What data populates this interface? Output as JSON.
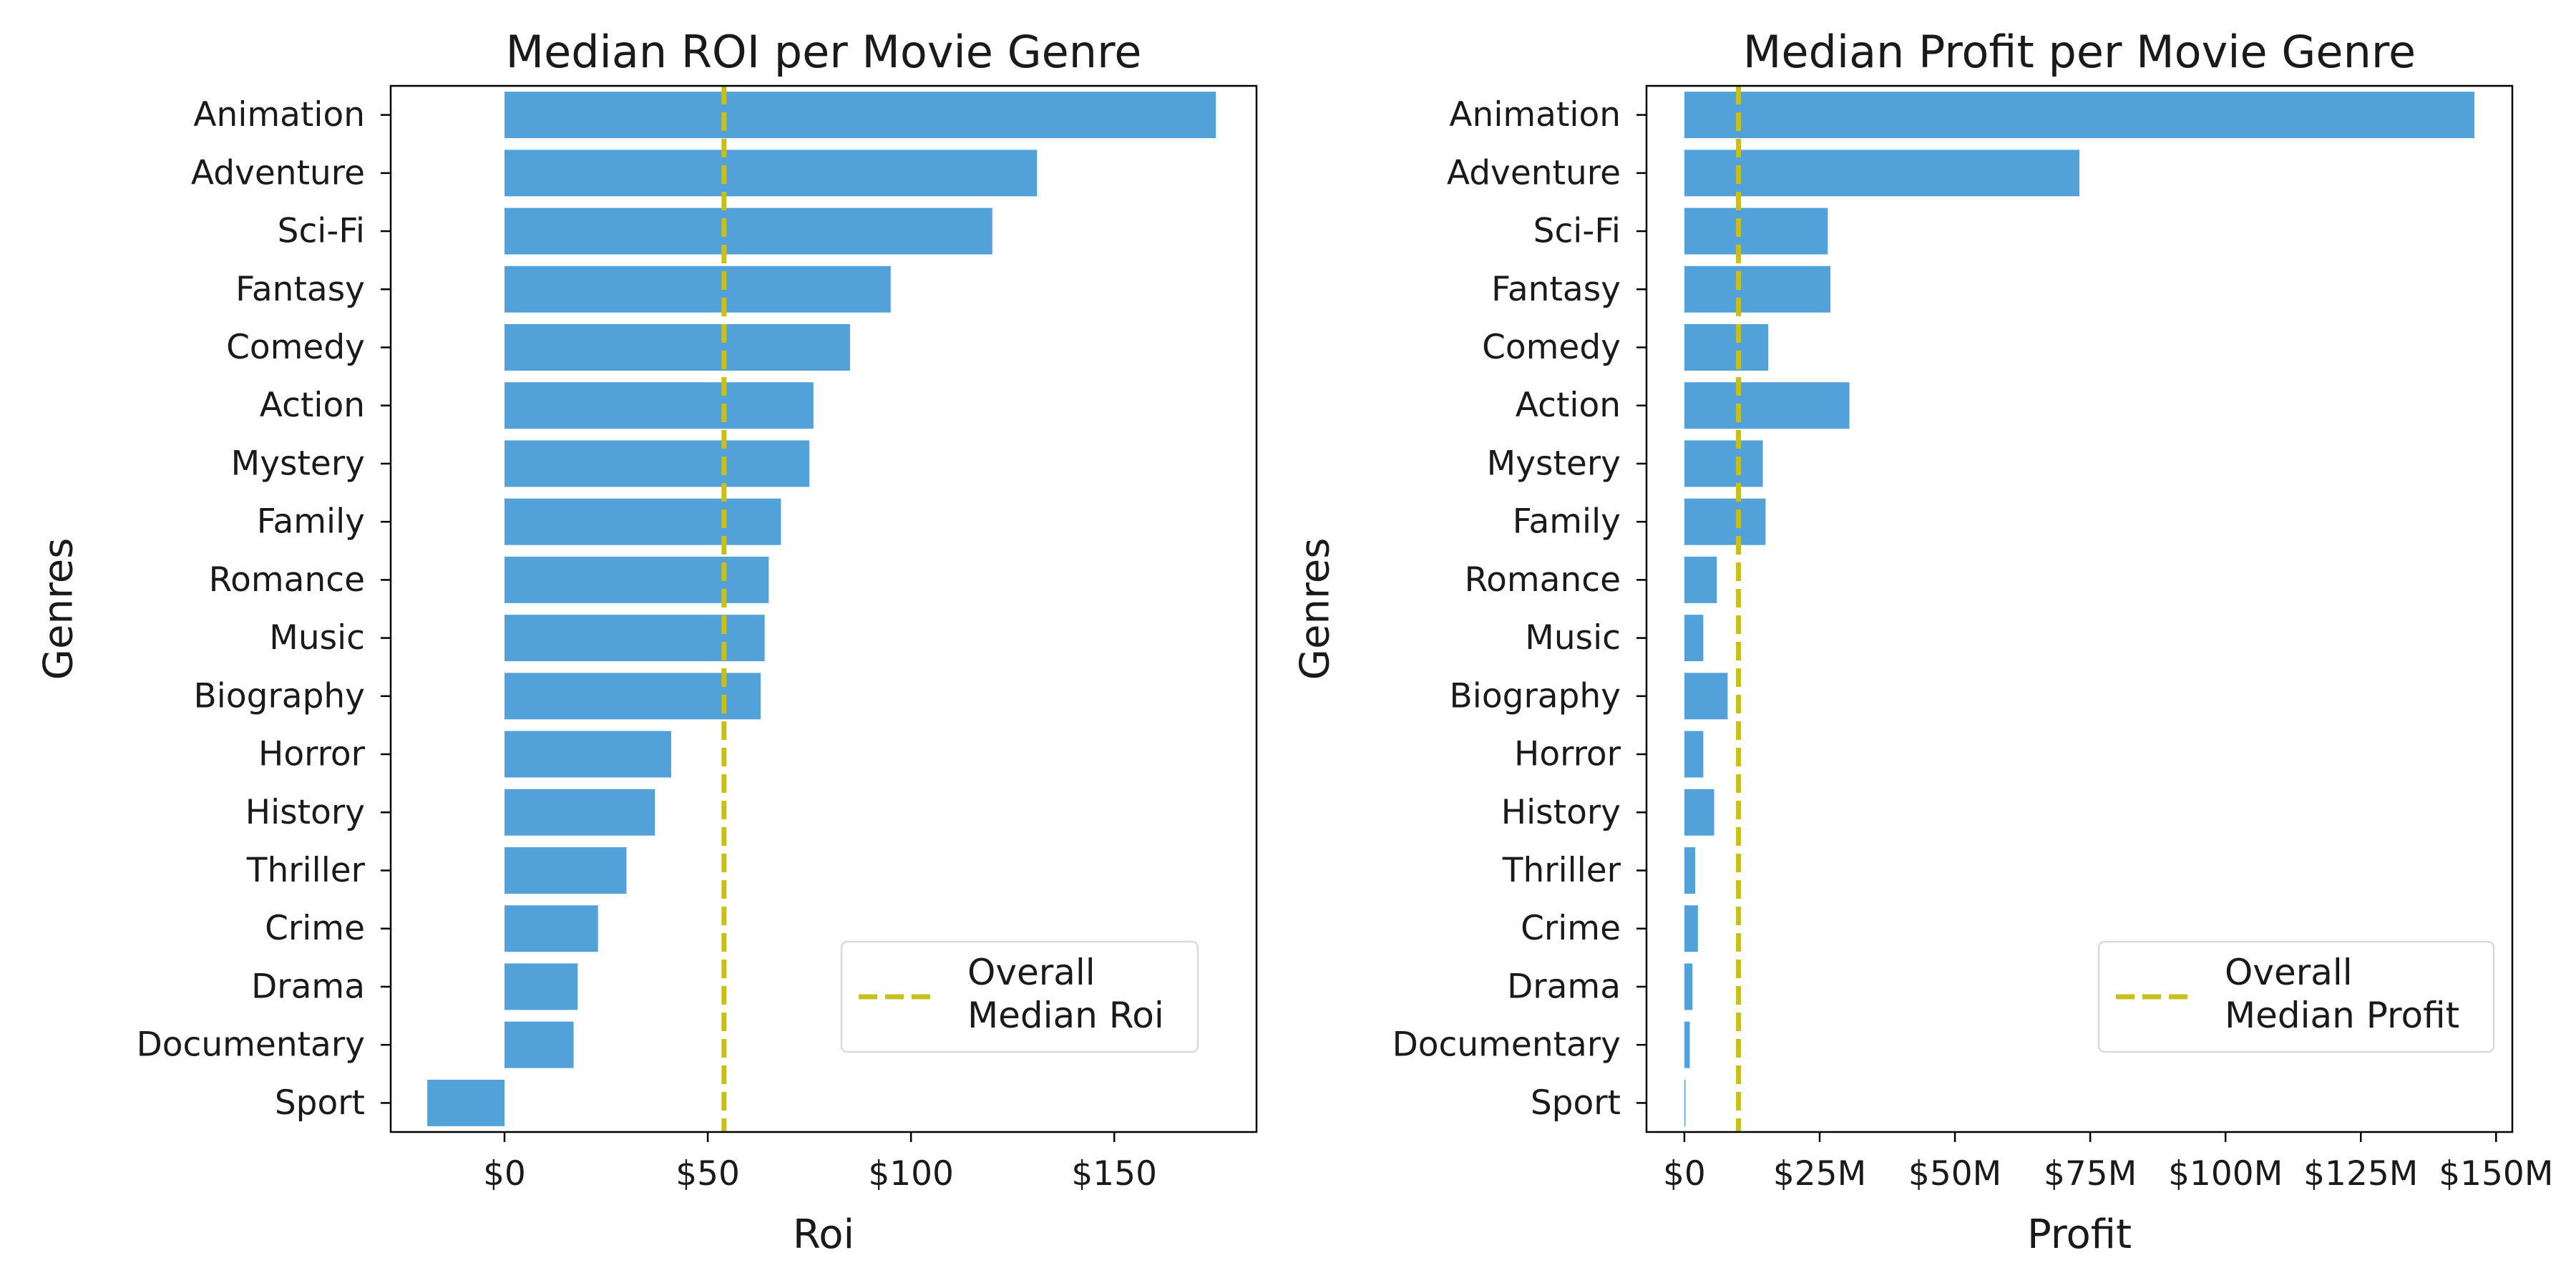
{
  "colors": {
    "bar": "#52a1d9",
    "median_line": "#c7c01c",
    "axis": "#000000",
    "legend_border": "#d9d9d9"
  },
  "chart_data": [
    {
      "type": "bar",
      "orientation": "horizontal",
      "title": "Median ROI per Movie Genre",
      "xlabel": "Roi",
      "ylabel": "Genres",
      "categories": [
        "Animation",
        "Adventure",
        "Sci-Fi",
        "Fantasy",
        "Comedy",
        "Action",
        "Mystery",
        "Family",
        "Romance",
        "Music",
        "Biography",
        "Horror",
        "History",
        "Thriller",
        "Crime",
        "Drama",
        "Documentary",
        "Sport"
      ],
      "values": [
        175,
        131,
        120,
        95,
        85,
        76,
        75,
        68,
        65,
        64,
        63,
        41,
        37,
        30,
        23,
        18,
        17,
        -19
      ],
      "xlim": [
        -28,
        185
      ],
      "xticks": [
        0,
        50,
        100,
        150
      ],
      "xtick_labels": [
        "$0",
        "$50",
        "$100",
        "$150"
      ],
      "reference_line": {
        "value": 54,
        "style": "dashed",
        "label_lines": [
          "Overall",
          "Median Roi"
        ]
      },
      "legend_position": "lower-right"
    },
    {
      "type": "bar",
      "orientation": "horizontal",
      "title": "Median Profit per Movie Genre",
      "xlabel": "Profit",
      "ylabel": "Genres",
      "categories": [
        "Animation",
        "Adventure",
        "Sci-Fi",
        "Fantasy",
        "Comedy",
        "Action",
        "Mystery",
        "Family",
        "Romance",
        "Music",
        "Biography",
        "Horror",
        "History",
        "Thriller",
        "Crime",
        "Drama",
        "Documentary",
        "Sport"
      ],
      "values": [
        146,
        73,
        26.5,
        27,
        15.5,
        30.5,
        14.5,
        15,
        6,
        3.5,
        8,
        3.5,
        5.5,
        2,
        2.5,
        1.5,
        1,
        0.2
      ],
      "value_unit": "millions USD",
      "xlim": [
        -7,
        153
      ],
      "xticks": [
        0,
        25,
        50,
        75,
        100,
        125,
        150
      ],
      "xtick_labels": [
        "$0",
        "$25M",
        "$50M",
        "$75M",
        "$100M",
        "$125M",
        "$150M"
      ],
      "reference_line": {
        "value": 10,
        "style": "dashed",
        "label_lines": [
          "Overall",
          "Median Profit"
        ]
      },
      "legend_position": "lower-right"
    }
  ]
}
